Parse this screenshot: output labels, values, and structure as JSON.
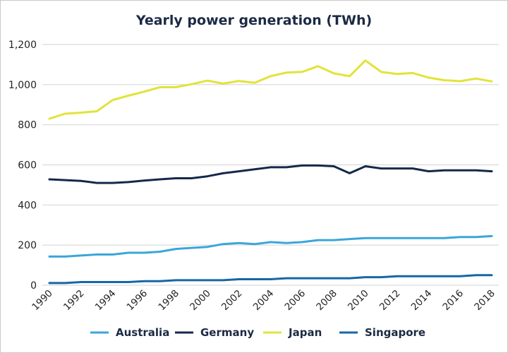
{
  "chart_data": {
    "type": "line",
    "title": "Yearly power generation (TWh)",
    "xlabel": "",
    "ylabel": "",
    "x": [
      1990,
      1991,
      1992,
      1993,
      1994,
      1995,
      1996,
      1997,
      1998,
      1999,
      2000,
      2001,
      2002,
      2003,
      2004,
      2005,
      2006,
      2007,
      2008,
      2009,
      2010,
      2011,
      2012,
      2013,
      2014,
      2015,
      2016,
      2017,
      2018
    ],
    "x_tick_labels": [
      "1990",
      "1992",
      "1994",
      "1996",
      "1998",
      "2000",
      "2002",
      "2004",
      "2006",
      "2008",
      "2010",
      "2012",
      "2014",
      "2016",
      "2018"
    ],
    "y_tick_labels": [
      "0",
      "200",
      "400",
      "600",
      "800",
      "1,000",
      "1,200"
    ],
    "y_ticks": [
      0,
      200,
      400,
      600,
      800,
      1000,
      1200
    ],
    "ylim": [
      0,
      1200
    ],
    "xlim": [
      1990,
      2018
    ],
    "grid": "horizontal",
    "legend_position": "bottom",
    "series": [
      {
        "name": "Australia",
        "color": "#3aa6d9",
        "values": [
          143,
          143,
          148,
          153,
          153,
          162,
          162,
          167,
          181,
          186,
          191,
          205,
          210,
          205,
          215,
          210,
          215,
          225,
          225,
          230,
          235,
          235,
          235,
          235,
          235,
          235,
          240,
          240,
          245
        ]
      },
      {
        "name": "Germany",
        "color": "#14294a",
        "values": [
          528,
          524,
          520,
          510,
          510,
          514,
          522,
          528,
          533,
          533,
          543,
          558,
          568,
          578,
          588,
          588,
          597,
          597,
          593,
          558,
          593,
          582,
          582,
          582,
          568,
          573,
          573,
          573,
          568
        ]
      },
      {
        "name": "Japan",
        "color": "#e2e33a",
        "values": [
          830,
          855,
          860,
          867,
          923,
          945,
          965,
          987,
          987,
          1002,
          1020,
          1005,
          1018,
          1009,
          1042,
          1060,
          1063,
          1092,
          1056,
          1042,
          1120,
          1063,
          1053,
          1058,
          1035,
          1022,
          1017,
          1030,
          1016
        ]
      },
      {
        "name": "Singapore",
        "color": "#1467a8",
        "values": [
          11,
          11,
          16,
          16,
          16,
          16,
          20,
          20,
          25,
          25,
          25,
          25,
          30,
          30,
          30,
          35,
          35,
          35,
          35,
          35,
          40,
          40,
          45,
          45,
          45,
          45,
          45,
          50,
          50
        ]
      }
    ]
  }
}
